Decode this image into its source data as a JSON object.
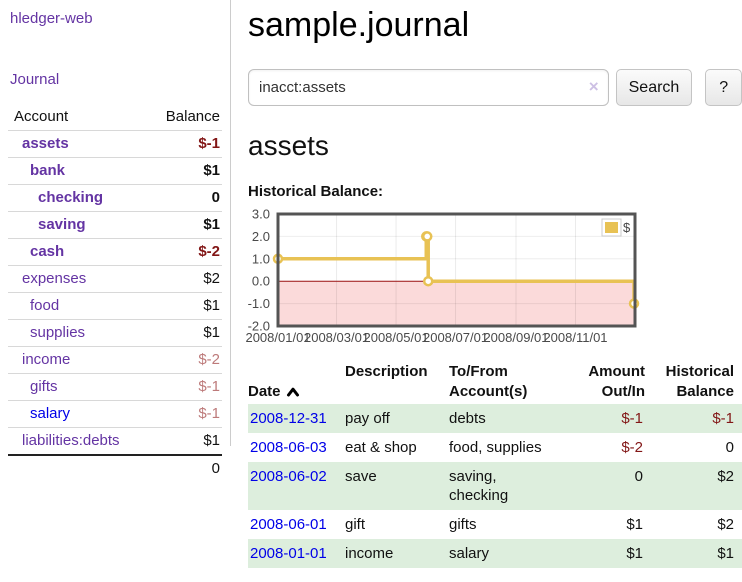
{
  "app": {
    "title": "hledger-web"
  },
  "colors": {
    "link_purple": "#6434a3",
    "link_blue": "#0000e8",
    "negative_strong": "#821616",
    "negative_dim": "#bd7a7a",
    "row_green": "#ddeedd",
    "chart_line": "#e8c254",
    "chart_negative_region": "#fbdada",
    "chart_zero_line": "#991111",
    "chart_border": "#545454"
  },
  "sidebar": {
    "journal_link": "Journal",
    "accounts": {
      "headers": {
        "account": "Account",
        "balance": "Balance"
      },
      "rows": [
        {
          "account": "assets",
          "depth": 1,
          "bold": true,
          "balance": "$-1",
          "tone": "neg"
        },
        {
          "account": "bank",
          "depth": 2,
          "bold": true,
          "balance": "$1",
          "tone": "pos"
        },
        {
          "account": "checking",
          "depth": 3,
          "bold": true,
          "balance": "0",
          "tone": "pos"
        },
        {
          "account": "saving",
          "depth": 3,
          "bold": true,
          "balance": "$1",
          "tone": "pos"
        },
        {
          "account": "cash",
          "depth": 2,
          "bold": true,
          "balance": "$-2",
          "tone": "neg"
        },
        {
          "account": "expenses",
          "depth": 1,
          "bold": false,
          "balance": "$2",
          "tone": "pos"
        },
        {
          "account": "food",
          "depth": 2,
          "bold": false,
          "balance": "$1",
          "tone": "pos"
        },
        {
          "account": "supplies",
          "depth": 2,
          "bold": false,
          "balance": "$1",
          "tone": "pos"
        },
        {
          "account": "income",
          "depth": 1,
          "bold": false,
          "balance": "$-2",
          "tone": "neg-dim"
        },
        {
          "account": "gifts",
          "depth": 2,
          "bold": false,
          "balance": "$-1",
          "tone": "neg-dim"
        },
        {
          "account": "salary",
          "depth": 2,
          "bold": false,
          "balance": "$-1",
          "tone": "neg-dim",
          "link": "blue"
        },
        {
          "account": "liabilities:debts",
          "depth": 1,
          "bold": false,
          "balance": "$1",
          "tone": "pos"
        }
      ],
      "total": "0"
    }
  },
  "main": {
    "title": "sample.journal",
    "search": {
      "value": "inacct:assets",
      "clear_icon": "×",
      "search_button": "Search",
      "help_button": "?"
    },
    "heading": "assets",
    "chart_title": "Historical Balance:"
  },
  "chart_data": {
    "type": "line",
    "step": true,
    "title": "Historical Balance",
    "xlabel": "",
    "ylabel": "",
    "ylim": [
      -2,
      3
    ],
    "y_ticks": [
      3,
      2,
      1,
      0,
      -1,
      -2
    ],
    "x_range_days": [
      0,
      366
    ],
    "x_ticks": [
      {
        "label": "2008/01/01",
        "day": 0
      },
      {
        "label": "2008/03/01",
        "day": 60
      },
      {
        "label": "2008/05/01",
        "day": 121
      },
      {
        "label": "2008/07/01",
        "day": 182
      },
      {
        "label": "2008/09/01",
        "day": 244
      },
      {
        "label": "2008/11/01",
        "day": 305
      }
    ],
    "legend": {
      "label": "$",
      "position": "top-right"
    },
    "grid": true,
    "negative_region_shaded": true,
    "series": [
      {
        "name": "$",
        "color": "#e8c254",
        "points": [
          {
            "date": "2008-01-01",
            "day": 0,
            "value": 1
          },
          {
            "date": "2008-06-01",
            "day": 152,
            "value": 2
          },
          {
            "date": "2008-06-02",
            "day": 153,
            "value": 2
          },
          {
            "date": "2008-06-03",
            "day": 154,
            "value": 0
          },
          {
            "date": "2008-12-31",
            "day": 365,
            "value": -1
          }
        ]
      }
    ]
  },
  "register": {
    "headers": [
      {
        "label": "Date",
        "sorted": "ascending"
      },
      {
        "label": "Description"
      },
      {
        "label": "To/From\nAccount(s)"
      },
      {
        "label": "Amount\nOut/In"
      },
      {
        "label": "Historical\nBalance"
      }
    ],
    "rows": [
      {
        "date": "2008-12-31",
        "description": "pay off",
        "accounts": "debts",
        "amount": "$-1",
        "amount_negative": true,
        "balance": "$-1",
        "balance_negative": true
      },
      {
        "date": "2008-06-03",
        "description": "eat & shop",
        "accounts": "food, supplies",
        "amount": "$-2",
        "amount_negative": true,
        "balance": "0",
        "balance_negative": false
      },
      {
        "date": "2008-06-02",
        "description": "save",
        "accounts": "saving, checking",
        "amount": "0",
        "amount_negative": false,
        "balance": "$2",
        "balance_negative": false
      },
      {
        "date": "2008-06-01",
        "description": "gift",
        "accounts": "gifts",
        "amount": "$1",
        "amount_negative": false,
        "balance": "$2",
        "balance_negative": false
      },
      {
        "date": "2008-01-01",
        "description": "income",
        "accounts": "salary",
        "amount": "$1",
        "amount_negative": false,
        "balance": "$1",
        "balance_negative": false
      }
    ]
  }
}
